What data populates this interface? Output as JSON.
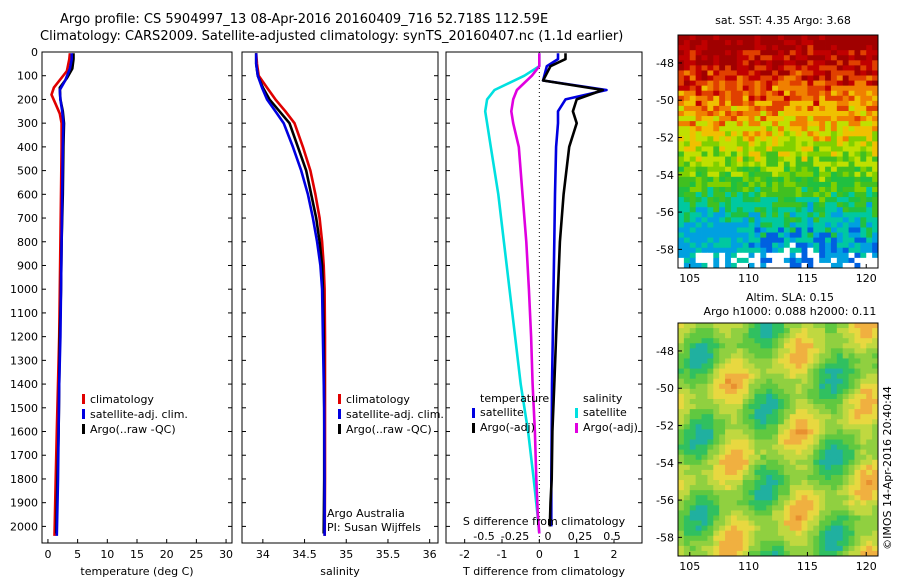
{
  "title": {
    "line1": "Argo profile: CS 5904997_13 08-Apr-2016 20160409_716 52.718S 112.59E",
    "line2": "Climatology: CARS2009. Satellite-adjusted climatology: synTS_20160407.nc (1.1d earlier)"
  },
  "colors": {
    "climatology": "#e00000",
    "satellite_adj": "#0000e0",
    "argo": "#000000",
    "salinity_satellite": "#00e0e0",
    "salinity_argo": "#e000e0"
  },
  "chart_data": [
    {
      "type": "line",
      "name": "temperature",
      "xlabel": "temperature (deg C)",
      "ylabel": "",
      "xlim": [
        -1,
        31
      ],
      "ylim": [
        2070,
        0
      ],
      "xticks": [
        0,
        5,
        10,
        15,
        20,
        25,
        30
      ],
      "yticks": [
        0,
        100,
        200,
        300,
        400,
        500,
        600,
        700,
        800,
        900,
        1000,
        1100,
        1200,
        1300,
        1400,
        1500,
        1600,
        1700,
        1800,
        1900,
        2000
      ],
      "legend": [
        "climatology",
        "satellite-adj. clim.",
        "Argo(..raw -QC)"
      ],
      "series": [
        {
          "name": "climatology",
          "color": "#e00000",
          "x": [
            3.7,
            3.6,
            3.2,
            1.0,
            0.6,
            1.3,
            2.0,
            2.3,
            2.3,
            2.2,
            2.1,
            2.0,
            1.9,
            1.7,
            1.5,
            1.3,
            1.1
          ],
          "y": [
            5,
            30,
            80,
            150,
            180,
            220,
            260,
            300,
            400,
            600,
            800,
            1000,
            1200,
            1400,
            1600,
            1800,
            2040
          ]
        },
        {
          "name": "Argo(..raw -QC)",
          "color": "#000000",
          "x": [
            4.3,
            4.3,
            4.1,
            3.2,
            2.0,
            2.1,
            2.5,
            2.7,
            2.6,
            2.5,
            2.3,
            2.2,
            2.0,
            1.9,
            1.8,
            1.6,
            1.4
          ],
          "y": [
            5,
            30,
            70,
            110,
            150,
            200,
            250,
            300,
            400,
            600,
            800,
            1000,
            1200,
            1400,
            1600,
            1800,
            2030
          ]
        },
        {
          "name": "satellite-adj. clim.",
          "color": "#0000e0",
          "x": [
            4.0,
            4.0,
            3.7,
            2.9,
            2.0,
            2.1,
            2.4,
            2.6,
            2.5,
            2.4,
            2.3,
            2.2,
            2.1,
            1.9,
            1.8,
            1.7,
            1.5
          ],
          "y": [
            5,
            30,
            70,
            120,
            160,
            200,
            250,
            300,
            400,
            600,
            800,
            1000,
            1200,
            1400,
            1600,
            1800,
            2040
          ]
        }
      ]
    },
    {
      "type": "line",
      "name": "salinity",
      "xlabel": "salinity",
      "ylabel": "",
      "xlim": [
        33.75,
        36.1
      ],
      "ylim": [
        2070,
        0
      ],
      "xticks": [
        34,
        34.5,
        35,
        35.5,
        36
      ],
      "legend": [
        "climatology",
        "satellite-adj. clim.",
        "Argo(..raw -QC)"
      ],
      "annotation": [
        "Argo Australia",
        "PI: Susan Wijffels"
      ],
      "series": [
        {
          "name": "climatology",
          "color": "#e00000",
          "x": [
            33.92,
            33.93,
            33.95,
            34.05,
            34.15,
            34.27,
            34.38,
            34.48,
            34.57,
            34.63,
            34.68,
            34.71,
            34.73,
            34.74,
            34.745,
            34.745,
            34.745,
            34.742
          ],
          "y": [
            5,
            50,
            100,
            150,
            200,
            250,
            300,
            400,
            500,
            600,
            700,
            800,
            900,
            1000,
            1200,
            1500,
            1800,
            2040
          ]
        },
        {
          "name": "Argo(..raw -QC)",
          "color": "#000000",
          "x": [
            33.92,
            33.92,
            33.94,
            34.0,
            34.08,
            34.2,
            34.32,
            34.42,
            34.52,
            34.58,
            34.64,
            34.68,
            34.71,
            34.72,
            34.73,
            34.735,
            34.735,
            34.73
          ],
          "y": [
            5,
            50,
            100,
            150,
            200,
            250,
            300,
            400,
            500,
            600,
            700,
            800,
            900,
            1000,
            1200,
            1500,
            1800,
            2030
          ]
        },
        {
          "name": "satellite-adj. clim.",
          "color": "#0000e0",
          "x": [
            33.92,
            33.92,
            33.94,
            33.99,
            34.05,
            34.15,
            34.25,
            34.36,
            34.46,
            34.54,
            34.6,
            34.65,
            34.69,
            34.71,
            34.72,
            34.735,
            34.74,
            34.74
          ],
          "y": [
            5,
            50,
            100,
            150,
            200,
            250,
            300,
            400,
            500,
            600,
            700,
            800,
            900,
            1000,
            1200,
            1500,
            1800,
            2040
          ]
        }
      ]
    },
    {
      "type": "line",
      "name": "difference",
      "xlabel": "T difference from climatology",
      "x2label": "S difference from climatology",
      "xlim": [
        -2.5,
        2.75
      ],
      "ylim": [
        2070,
        0
      ],
      "xticks": [
        -2,
        -1,
        0,
        1,
        2
      ],
      "x2ticks": [
        "-0.5",
        "-0.25",
        "0",
        "0.25",
        "0.5"
      ],
      "legend_titles": [
        "temperature",
        "salinity"
      ],
      "legend": [
        "satellite",
        "Argo(-adj)",
        "satellite",
        "Argo(-adj)"
      ],
      "series": [
        {
          "name": "temperature satellite",
          "color": "#0000e0",
          "x": [
            0.5,
            0.5,
            0.2,
            0.1,
            1.8,
            0.7,
            0.5,
            0.5,
            0.45,
            0.42,
            0.4,
            0.38,
            0.36,
            0.34,
            0.33,
            0.32,
            0.32,
            0.32
          ],
          "y": [
            5,
            30,
            60,
            120,
            160,
            200,
            250,
            300,
            400,
            600,
            800,
            1000,
            1200,
            1400,
            1600,
            1800,
            1900,
            2000
          ]
        },
        {
          "name": "temperature Argo(-adj)",
          "color": "#000000",
          "x": [
            0.7,
            0.7,
            0.3,
            0.1,
            1.7,
            1.0,
            0.9,
            1.0,
            0.8,
            0.65,
            0.55,
            0.5,
            0.45,
            0.4,
            0.35,
            0.33,
            0.3,
            0.28
          ],
          "y": [
            5,
            30,
            60,
            120,
            160,
            200,
            250,
            300,
            400,
            600,
            800,
            1000,
            1200,
            1400,
            1600,
            1800,
            1900,
            2000
          ]
        },
        {
          "name": "salinity satellite",
          "color": "#00e0e0",
          "x": [
            0.0,
            0.0,
            -0.4,
            -1.2,
            -1.4,
            -1.45,
            -1.4,
            -1.3,
            -1.1,
            -0.95,
            -0.8,
            -0.65,
            -0.5,
            -0.3,
            -0.15,
            -0.05,
            0.0
          ],
          "y": [
            5,
            60,
            100,
            160,
            200,
            250,
            300,
            400,
            600,
            800,
            1000,
            1200,
            1400,
            1600,
            1800,
            1950,
            2030
          ]
        },
        {
          "name": "salinity Argo(-adj)",
          "color": "#e000e0",
          "x": [
            0.0,
            0.0,
            -0.2,
            -0.6,
            -0.7,
            -0.75,
            -0.7,
            -0.55,
            -0.45,
            -0.35,
            -0.28,
            -0.22,
            -0.18,
            -0.12,
            -0.08,
            -0.04,
            0.0
          ],
          "y": [
            5,
            60,
            100,
            160,
            200,
            250,
            300,
            400,
            600,
            800,
            1000,
            1200,
            1400,
            1600,
            1800,
            1950,
            2030
          ]
        }
      ]
    },
    {
      "type": "heatmap",
      "name": "sst-map",
      "title": "sat. SST: 4.35  Argo: 3.68",
      "xticks": [
        105,
        110,
        115,
        120
      ],
      "yticks": [
        -48,
        -50,
        -52,
        -54,
        -56,
        -58
      ],
      "xlim": [
        104,
        121
      ],
      "ylim": [
        -59,
        -46.5
      ]
    },
    {
      "type": "heatmap",
      "name": "sla-map",
      "title_lines": [
        "Altim. SLA: 0.15",
        "Argo h1000: 0.088 h2000: 0.11"
      ],
      "side_label": "©IMOS 14-Apr-2016 20:40:44",
      "xticks": [
        105,
        110,
        115,
        120
      ],
      "yticks": [
        -48,
        -50,
        -52,
        -54,
        -56,
        -58
      ],
      "xlim": [
        104,
        121
      ],
      "ylim": [
        -59,
        -46.5
      ]
    }
  ]
}
